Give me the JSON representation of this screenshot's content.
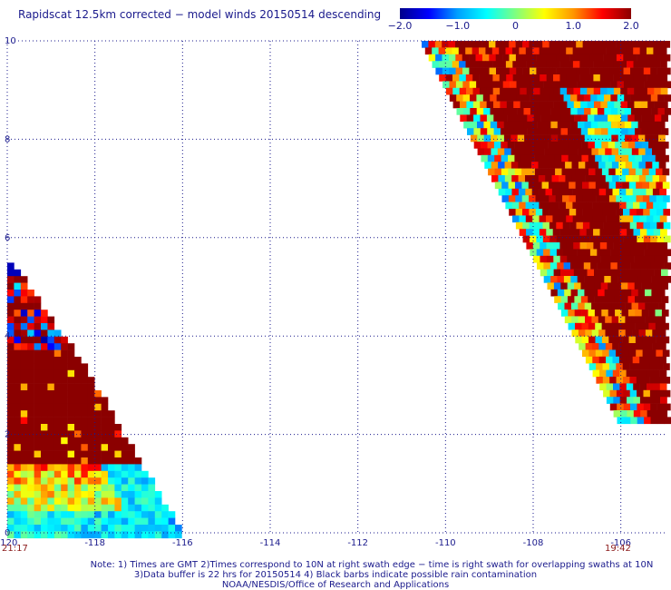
{
  "title": "Rapidscat 12.5km corrected − model winds 20150514 descending",
  "colorbar": {
    "tick_labels": [
      "−2.0",
      "−1.0",
      "0",
      "1.0",
      "2.0"
    ],
    "tick_values": [
      -2.0,
      -1.0,
      0,
      1.0,
      2.0
    ],
    "range": [
      -2.0,
      2.0
    ],
    "colors": [
      "#00008b",
      "#0000ff",
      "#00bfff",
      "#00ffff",
      "#7fff7f",
      "#ffff00",
      "#ffa500",
      "#ff0000",
      "#8b0000"
    ]
  },
  "axes": {
    "x_ticks": [
      -120,
      -118,
      -116,
      -114,
      -112,
      -110,
      -108,
      -106
    ],
    "x_tick_labels": [
      "-120",
      "-118",
      "-116",
      "-114",
      "-112",
      "-110",
      "-108",
      "-106"
    ],
    "y_ticks": [
      0,
      2,
      4,
      6,
      8,
      10
    ],
    "y_tick_labels": [
      "0",
      "2",
      "4",
      "6",
      "8",
      "10"
    ],
    "xlim": [
      -120,
      -105
    ],
    "ylim": [
      0,
      10
    ],
    "grid": true
  },
  "times": {
    "left": "21:17",
    "right": "19:42"
  },
  "notes": {
    "line1": "Note: 1) Times are GMT 2)Times correspond to 10N at right swath edge − time is right swath for overlapping swaths at 10N",
    "line2": "3)Data buffer is 22 hrs for 20150514 4) Black barbs indicate possible rain contamination",
    "line3": "NOAA/NESDIS/Office of Research and Applications"
  }
}
